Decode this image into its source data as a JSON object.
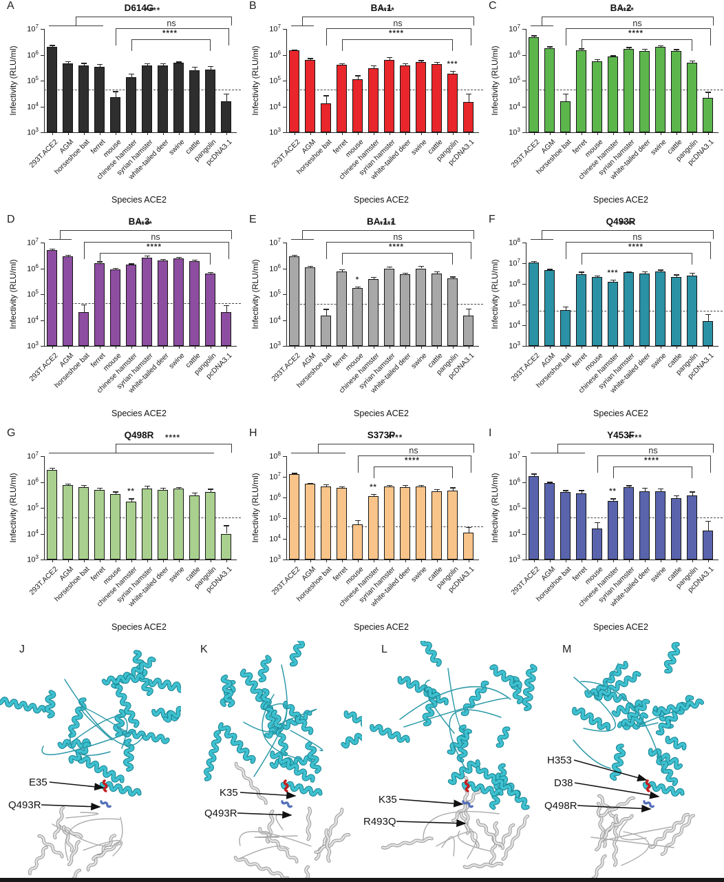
{
  "chart_data": [
    {
      "type": "bar",
      "letter": "A",
      "title": "D614G",
      "bar_color": "#2e2e2e",
      "ylabel": "Infectivity (RLU/ml)",
      "xlabel": "Species ACE2",
      "ylim": [
        1000,
        10000000
      ],
      "dashed_threshold": 45000,
      "grid": false,
      "categories": [
        "293T.ACE2",
        "AGM",
        "horseshoe bat",
        "ferret",
        "mouse",
        "chinese hamster",
        "syrian hamster",
        "white-tailed deer",
        "swine",
        "cattle",
        "pangolin",
        "pcDNA3.1"
      ],
      "values": [
        2000000,
        460000,
        390000,
        350000,
        23000,
        140000,
        380000,
        380000,
        480000,
        250000,
        270000,
        16000
      ],
      "errors_upper": [
        400000,
        110000,
        90000,
        90000,
        16000,
        50000,
        90000,
        90000,
        70000,
        100000,
        100000,
        16000
      ],
      "bar_stars": [],
      "brackets": [
        {
          "label": "****",
          "group": [
            0,
            3
          ],
          "to": 11,
          "tier": 0
        },
        {
          "label": "ns",
          "from": 4,
          "to": 11,
          "tier": 1
        },
        {
          "label": "****",
          "from": 5,
          "to": 10,
          "tier": 2
        }
      ]
    },
    {
      "type": "bar",
      "letter": "B",
      "title": "BA.1",
      "bar_color": "#e8262b",
      "ylabel": "Infectivity (RLU/ml)",
      "xlabel": "Species ACE2",
      "ylim": [
        1000,
        10000000
      ],
      "dashed_threshold": 45000,
      "grid": false,
      "categories": [
        "293T.ACE2",
        "AGM",
        "horseshoe bat",
        "ferret",
        "mouse",
        "chinese hamster",
        "syrian hamster",
        "white-tailed deer",
        "swine",
        "cattle",
        "pangolin",
        "pcDNA3.1"
      ],
      "values": [
        1500000,
        650000,
        13000,
        400000,
        110000,
        300000,
        630000,
        380000,
        530000,
        450000,
        190000,
        15000
      ],
      "errors_upper": [
        120000,
        90000,
        14000,
        70000,
        50000,
        90000,
        200000,
        90000,
        90000,
        90000,
        50000,
        16000
      ],
      "bar_stars": [
        {
          "index": 10,
          "label": "***"
        }
      ],
      "brackets": [
        {
          "label": "****",
          "group": [
            0,
            1
          ],
          "to": 11,
          "tier": 0
        },
        {
          "label": "ns",
          "from": 2,
          "to": 11,
          "tier": 1
        },
        {
          "label": "****",
          "from": 3,
          "to": 10,
          "tier": 2
        }
      ]
    },
    {
      "type": "bar",
      "letter": "C",
      "title": "BA.2",
      "bar_color": "#5cb64c",
      "ylabel": "Infectivity (RLU/ml)",
      "xlabel": "Species ACE2",
      "ylim": [
        1000,
        10000000
      ],
      "dashed_threshold": 45000,
      "grid": false,
      "categories": [
        "293T.ACE2",
        "AGM",
        "horseshoe bat",
        "ferret",
        "mouse",
        "chinese hamster",
        "syrian hamster",
        "white-tailed deer",
        "swine",
        "cattle",
        "pangolin",
        "pcDNA3.1"
      ],
      "values": [
        4800000,
        1800000,
        16000,
        1500000,
        550000,
        850000,
        1700000,
        1400000,
        2000000,
        1400000,
        500000,
        22000
      ],
      "errors_upper": [
        900000,
        300000,
        16000,
        250000,
        130000,
        110000,
        300000,
        300000,
        300000,
        250000,
        90000,
        15000
      ],
      "bar_stars": [],
      "brackets": [
        {
          "label": "****",
          "group": [
            0,
            1
          ],
          "to": 11,
          "tier": 0
        },
        {
          "label": "ns",
          "from": 2,
          "to": 11,
          "tier": 1
        },
        {
          "label": "****",
          "from": 3,
          "to": 10,
          "tier": 2
        }
      ]
    },
    {
      "type": "bar",
      "letter": "D",
      "title": "BA.3",
      "bar_color": "#8d4da0",
      "ylabel": "Infectivity (RLU/ml)",
      "xlabel": "Species ACE2",
      "ylim": [
        1000,
        10000000
      ],
      "dashed_threshold": 45000,
      "grid": false,
      "categories": [
        "293T.ACE2",
        "AGM",
        "horseshoe bat",
        "ferret",
        "mouse",
        "chinese hamster",
        "syrian hamster",
        "white-tailed deer",
        "swine",
        "cattle",
        "pangolin",
        "pcDNA3.1"
      ],
      "values": [
        5000000,
        3000000,
        20000,
        1600000,
        900000,
        1400000,
        2600000,
        2000000,
        2400000,
        1900000,
        620000,
        20000
      ],
      "errors_upper": [
        900000,
        300000,
        20000,
        250000,
        130000,
        160000,
        600000,
        300000,
        400000,
        250000,
        90000,
        18000
      ],
      "bar_stars": [],
      "brackets": [
        {
          "label": "****",
          "group": [
            0,
            1
          ],
          "to": 11,
          "tier": 0
        },
        {
          "label": "ns",
          "from": 2,
          "to": 11,
          "tier": 1
        },
        {
          "label": "****",
          "from": 3,
          "to": 10,
          "tier": 2
        }
      ]
    },
    {
      "type": "bar",
      "letter": "E",
      "title": "BA.1.1",
      "bar_color": "#a8a8a8",
      "ylabel": "Infectivity (RLU/ml)",
      "xlabel": "Species ACE2",
      "ylim": [
        1000,
        10000000
      ],
      "dashed_threshold": 42000,
      "grid": false,
      "categories": [
        "293T.ACE2",
        "AGM",
        "horseshoe bat",
        "ferret",
        "mouse",
        "chinese hamster",
        "syrian hamster",
        "white-tailed deer",
        "swine",
        "cattle",
        "pangolin",
        "pcDNA3.1"
      ],
      "values": [
        3000000,
        1100000,
        15000,
        750000,
        170000,
        380000,
        1000000,
        600000,
        1000000,
        650000,
        400000,
        15000
      ],
      "errors_upper": [
        300000,
        160000,
        12000,
        160000,
        30000,
        90000,
        160000,
        90000,
        260000,
        130000,
        90000,
        13000
      ],
      "bar_stars": [
        {
          "index": 4,
          "label": "*"
        }
      ],
      "brackets": [
        {
          "label": "****",
          "group": [
            0,
            1
          ],
          "to": 11,
          "tier": 0
        },
        {
          "label": "ns",
          "from": 2,
          "to": 11,
          "tier": 1
        },
        {
          "label": "****",
          "from": 3,
          "to": 10,
          "tier": 2
        }
      ]
    },
    {
      "type": "bar",
      "letter": "F",
      "title": "Q493R",
      "bar_color": "#2b91a4",
      "ylabel": "Infectivity (RLU/ml)",
      "xlabel": "Species ACE2",
      "ylim": [
        1000,
        100000000
      ],
      "dashed_threshold": 50000,
      "grid": false,
      "categories": [
        "293T.ACE2",
        "AGM",
        "horseshoe bat",
        "ferret",
        "mouse",
        "chinese hamster",
        "syrian hamster",
        "white-tailed deer",
        "swine",
        "cattle",
        "pangolin",
        "pcDNA3.1"
      ],
      "values": [
        11000000,
        4600000,
        55000,
        3000000,
        2100000,
        1300000,
        3700000,
        3200000,
        4000000,
        2200000,
        2600000,
        16000
      ],
      "errors_upper": [
        1600000,
        700000,
        26000,
        900000,
        500000,
        300000,
        400000,
        900000,
        900000,
        700000,
        900000,
        18000
      ],
      "bar_stars": [
        {
          "index": 5,
          "label": "***"
        }
      ],
      "brackets": [
        {
          "label": "****",
          "group": [
            0,
            1
          ],
          "to": 11,
          "tier": 0
        },
        {
          "label": "ns",
          "from": 2,
          "to": 11,
          "tier": 1
        },
        {
          "label": "****",
          "from": 3,
          "to": 10,
          "tier": 2
        }
      ]
    },
    {
      "type": "bar",
      "letter": "G",
      "title": "Q498R",
      "bar_color": "#a9d08e",
      "ylabel": "Infectivity (RLU/ml)",
      "xlabel": "Species ACE2",
      "ylim": [
        1000,
        10000000
      ],
      "dashed_threshold": 42000,
      "grid": false,
      "categories": [
        "293T.ACE2",
        "AGM",
        "horseshoe bat",
        "ferret",
        "mouse",
        "chinese hamster",
        "syrian hamster",
        "white-tailed deer",
        "swine",
        "cattle",
        "pangolin",
        "pcDNA3.1"
      ],
      "values": [
        3000000,
        750000,
        650000,
        500000,
        350000,
        170000,
        550000,
        500000,
        550000,
        300000,
        420000,
        10000
      ],
      "errors_upper": [
        500000,
        110000,
        110000,
        90000,
        80000,
        60000,
        160000,
        110000,
        90000,
        90000,
        130000,
        11000
      ],
      "bar_stars": [
        {
          "index": 5,
          "label": "**"
        }
      ],
      "brackets": [
        {
          "label": "****",
          "from": 4,
          "to": 11,
          "tier": 0,
          "underline": [
            0,
            10
          ]
        }
      ]
    },
    {
      "type": "bar",
      "letter": "H",
      "title": "S373P",
      "bar_color": "#f8c489",
      "ylabel": "Infectivity (RLU/ml)",
      "xlabel": "Species ACE2",
      "ylim": [
        1000,
        100000000
      ],
      "dashed_threshold": 40000,
      "grid": false,
      "categories": [
        "293T.ACE2",
        "AGM",
        "horseshoe bat",
        "ferret",
        "mouse",
        "chinese hamster",
        "syrian hamster",
        "white-tailed deer",
        "swine",
        "cattle",
        "pangolin",
        "pcDNA3.1"
      ],
      "values": [
        14000000,
        4500000,
        3500000,
        3000000,
        50000,
        1200000,
        3500000,
        3200000,
        3400000,
        2000000,
        2200000,
        20000
      ],
      "errors_upper": [
        1600000,
        600000,
        900000,
        500000,
        30000,
        300000,
        600000,
        800000,
        600000,
        600000,
        900000,
        18000
      ],
      "bar_stars": [
        {
          "index": 5,
          "label": "**"
        }
      ],
      "brackets": [
        {
          "label": "****",
          "group": [
            0,
            3
          ],
          "to": 11,
          "tier": 0
        },
        {
          "label": "ns",
          "from": 4,
          "to": 11,
          "tier": 1
        },
        {
          "label": "****",
          "from": 5,
          "to": 10,
          "tier": 2
        }
      ]
    },
    {
      "type": "bar",
      "letter": "I",
      "title": "Y453F",
      "bar_color": "#5964ad",
      "ylabel": "Infectivity (RLU/ml)",
      "xlabel": "Species ACE2",
      "ylim": [
        1000,
        10000000
      ],
      "dashed_threshold": 43000,
      "grid": false,
      "categories": [
        "293T.ACE2",
        "AGM",
        "horseshoe bat",
        "ferret",
        "mouse",
        "chinese hamster",
        "syrian hamster",
        "white-tailed deer",
        "swine",
        "cattle",
        "pangolin",
        "pcDNA3.1"
      ],
      "values": [
        1700000,
        900000,
        420000,
        360000,
        16000,
        190000,
        650000,
        450000,
        430000,
        240000,
        300000,
        13000
      ],
      "errors_upper": [
        400000,
        110000,
        60000,
        130000,
        12000,
        40000,
        90000,
        160000,
        140000,
        70000,
        130000,
        19000
      ],
      "bar_stars": [
        {
          "index": 5,
          "label": "**"
        }
      ],
      "brackets": [
        {
          "label": "****",
          "group": [
            0,
            3
          ],
          "to": 11,
          "tier": 0
        },
        {
          "label": "ns",
          "from": 4,
          "to": 11,
          "tier": 1
        },
        {
          "label": "****",
          "from": 5,
          "to": 10,
          "tier": 2
        }
      ]
    }
  ],
  "structures": {
    "ribbon_top_color": "#3ec0cf",
    "ribbon_top_edge": "#14808f",
    "ribbon_bottom_color": "#e2e2e2",
    "ribbon_bottom_edge": "#909090",
    "residue_red": "#c41f1f",
    "residue_blue": "#5570b8",
    "panels": [
      {
        "letter": "J",
        "labels": [
          {
            "text": "E35"
          },
          {
            "text": "Q493R"
          }
        ]
      },
      {
        "letter": "K",
        "labels": [
          {
            "text": "K35"
          },
          {
            "text": "Q493R"
          }
        ]
      },
      {
        "letter": "L",
        "labels": [
          {
            "text": "K35"
          },
          {
            "text": "R493Q"
          }
        ]
      },
      {
        "letter": "M",
        "labels": [
          {
            "text": "H353"
          },
          {
            "text": "D38"
          },
          {
            "text": "Q498R"
          }
        ]
      }
    ]
  }
}
